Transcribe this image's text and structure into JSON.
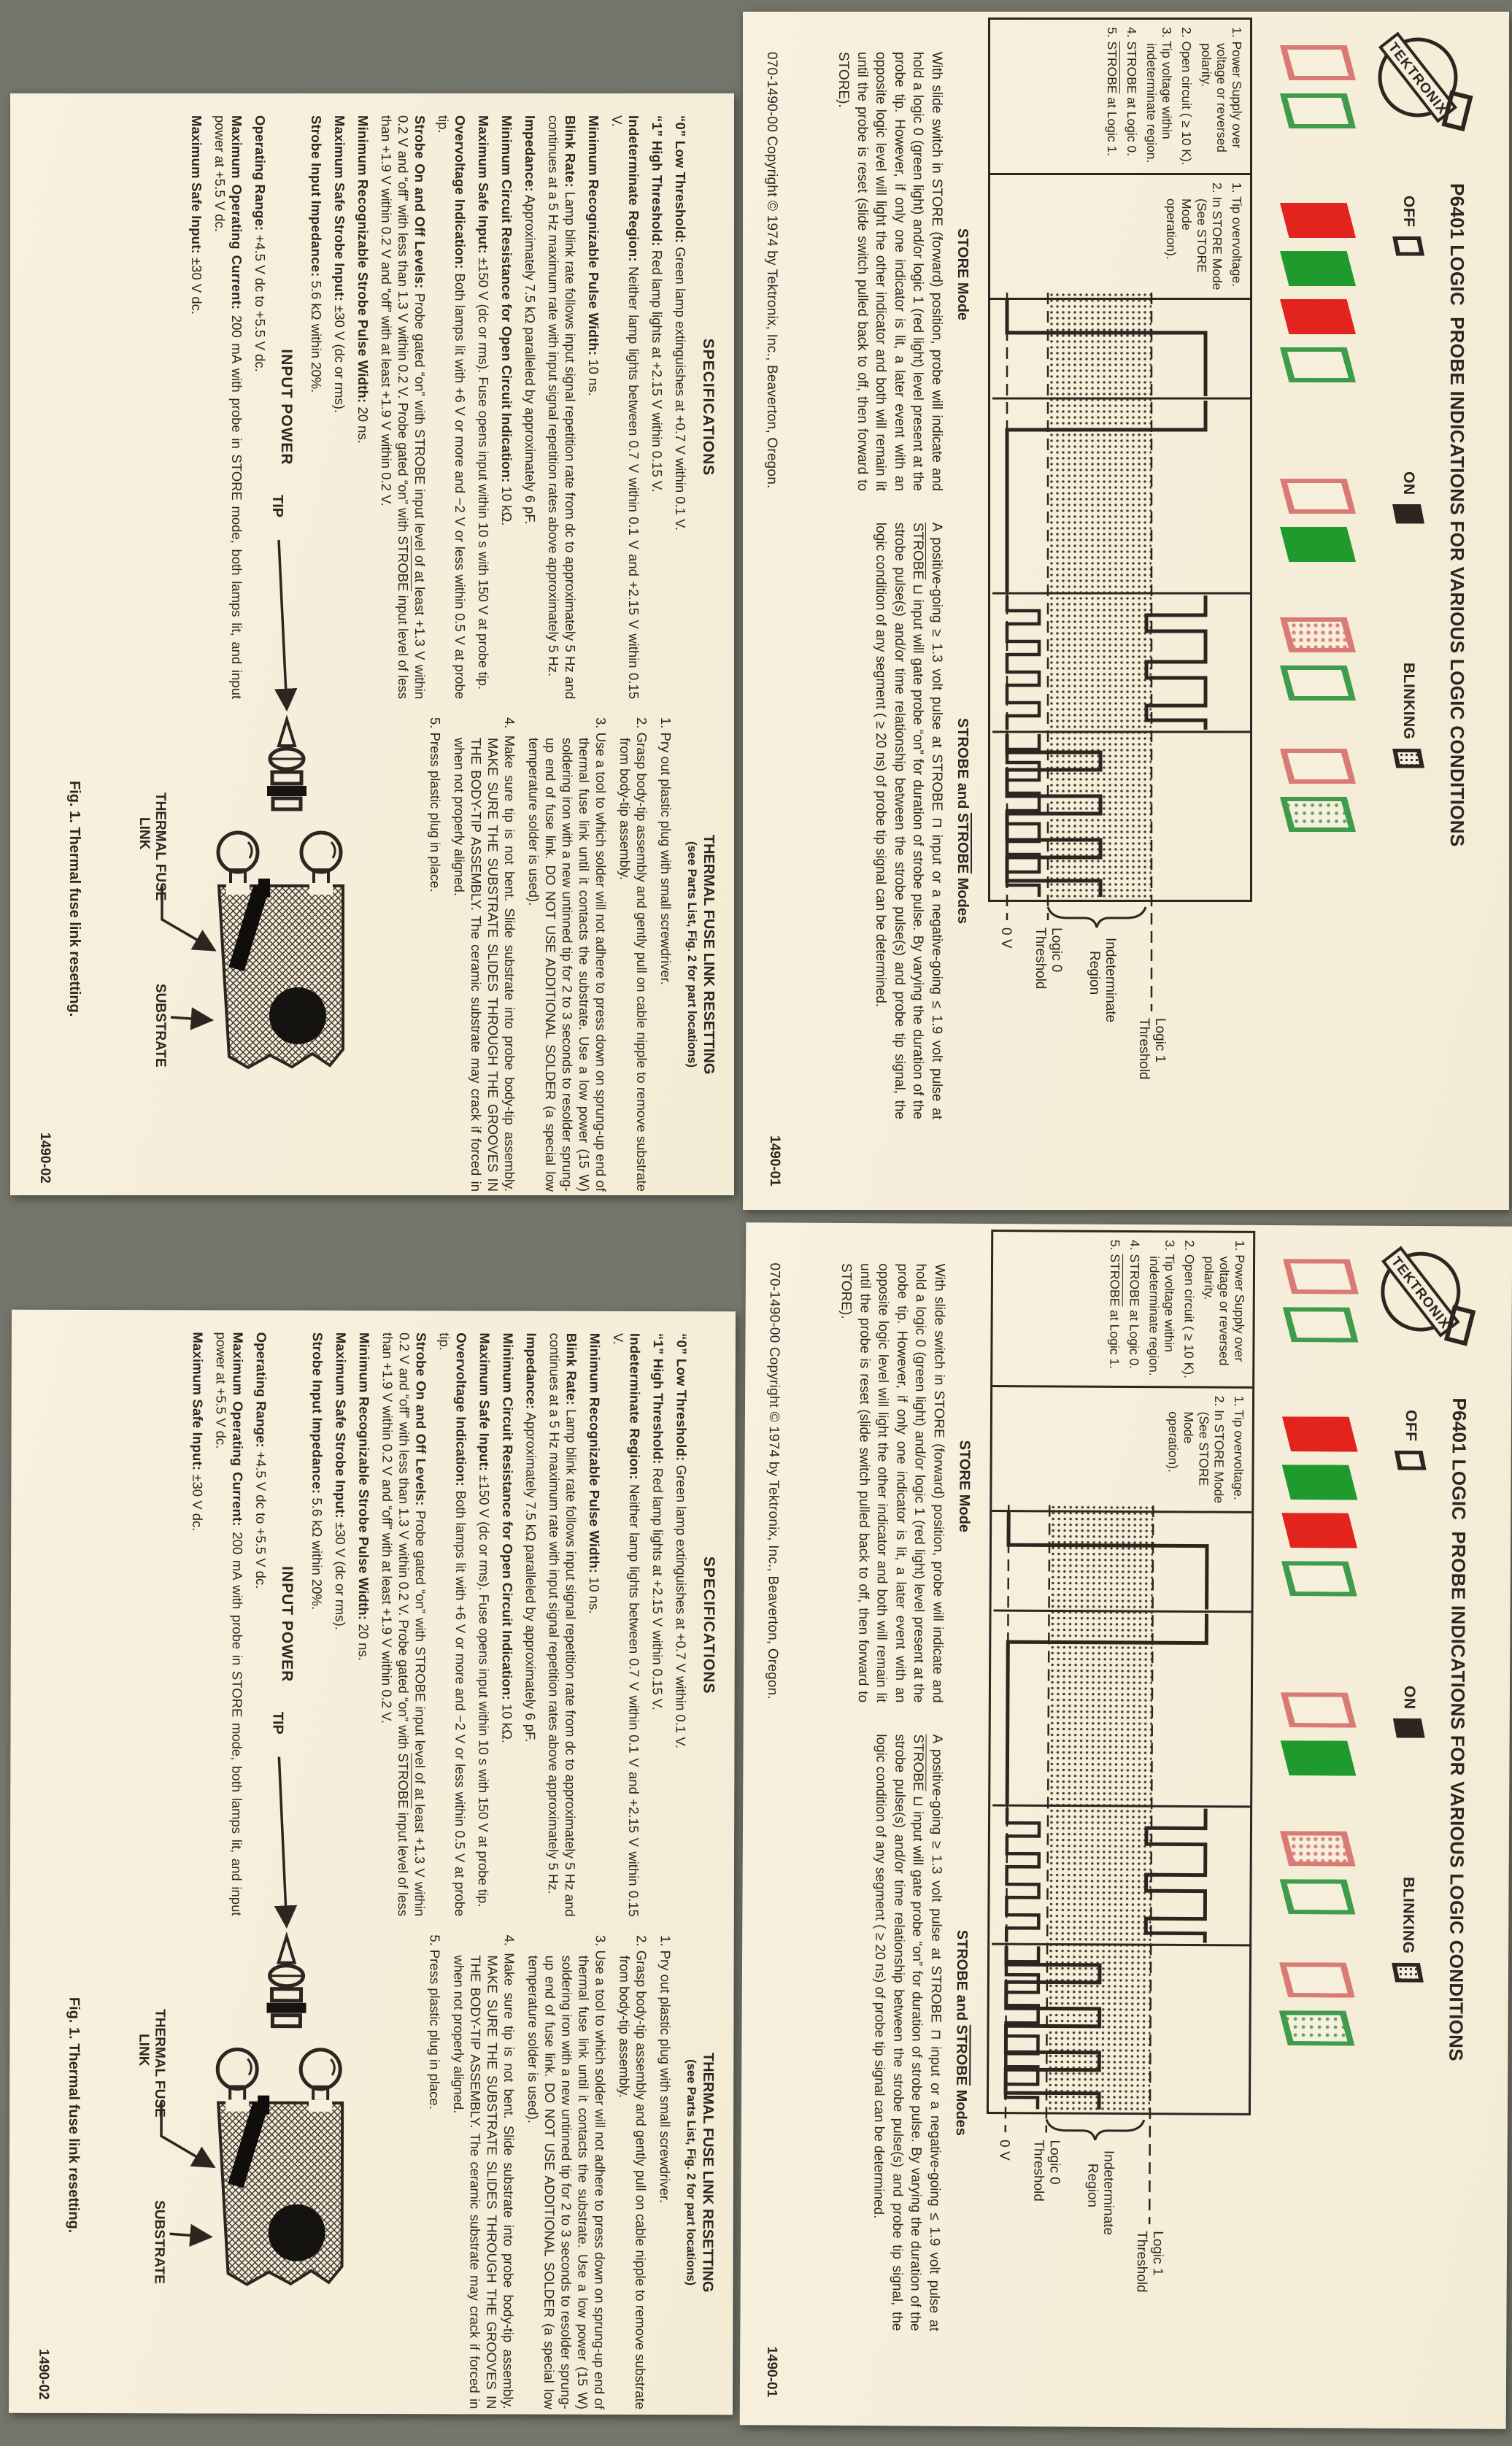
{
  "spec_card": {
    "title": "SPECIFICATIONS",
    "specs": [
      {
        "label": "“0” Low Threshold:",
        "text": "Green lamp extinguishes at +0.7 V within 0.1 V."
      },
      {
        "label": "“1” High Threshold:",
        "text": "Red lamp lights at +2.15 V within 0.15 V."
      },
      {
        "label": "Indeterminate Region:",
        "text": "Neither lamp lights between 0.7 V within 0.1 V and +2.15 V within 0.15 V."
      },
      {
        "label": "Minimum Recognizable Pulse Width:",
        "text": "10 ns."
      },
      {
        "label": "Blink Rate:",
        "text": "Lamp blink rate follows input signal repetition rate from dc to approximately 5 Hz and continues at a 5 Hz maximum rate with input signal repetition rates above approximately 5 Hz."
      },
      {
        "label": "Impedance:",
        "text": "Approximately 7.5 kΩ paralleled by approximately 6 pF."
      },
      {
        "label": "Minimum Circuit Resistance for Open Circuit Indication:",
        "text": "10 kΩ."
      },
      {
        "label": "Maximum Safe Input:",
        "text": "±150 V (dc or rms). Fuse opens input within 10 s with 150 V at probe tip."
      },
      {
        "label": "Overvoltage Indication:",
        "text": "Both lamps lit with +6 V or more and −2 V or less within 0.5 V at probe tip."
      },
      {
        "label": "Strobe On and Off Levels:",
        "text": "Probe gated “on” with STROBE input level of at least +1.3 V within 0.2 V and “off” with less than 1.3 V within 0.2 V. Probe gated “on” with {ov:STROBE} input level of less than +1.9 V within 0.2 V and “off” with at least +1.9 V within 0.2 V."
      },
      {
        "label": "Minimum Recognizable Strobe Pulse Width:",
        "text": "20 ns."
      },
      {
        "label": "Maximum Safe Strobe Input:",
        "text": "±30 V (dc or rms)."
      },
      {
        "label": "Strobe Input Impedance:",
        "text": "5.6 kΩ within 20%."
      }
    ],
    "input_power_title": "INPUT POWER",
    "input_power": [
      {
        "label": "Operating Range:",
        "text": "+4.5 V dc to +5.5 V dc."
      },
      {
        "label": "Maximum Operating Current:",
        "text": "200 mA with probe in STORE mode, both lamps lit, and input power at +5.5 V dc."
      },
      {
        "label": "Maximum Safe Input:",
        "text": "±30 V dc."
      }
    ],
    "thermal_title": "THERMAL FUSE LINK RESETTING",
    "thermal_subtitle": "(see Parts List, Fig. 2 for part locations)",
    "steps": [
      {
        "text": "1.  Pry out plastic plug with small screwdriver."
      },
      {
        "text": "2.  Grasp body-tip assembly and gently pull on cable nipple to remove substrate from body-tip assembly."
      },
      {
        "text": "3.  Use a tool to which solder will not adhere to press down on sprung-up end of thermal fuse link until it contacts the substrate. Use a low power (15 W) soldering iron with a new untinned tip for 2 to 3 seconds to resolder sprung-up end of fuse link. DO NOT USE ADDITIONAL SOLDER (a special low temperature solder is used)."
      },
      {
        "text": "4.  Make sure tip is not bent. Slide substrate into probe body-tip assembly. MAKE SURE THE SUBSTRATE SLIDES THROUGH THE GROOVES IN THE BODY-TIP ASSEMBLY. The ceramic substrate may crack if forced in when not properly aligned."
      },
      {
        "text": "5.  Press plastic plug in place."
      }
    ],
    "figure": {
      "tip_label": "TIP",
      "fuse_label_1": "THERMAL FUSE",
      "fuse_label_2": "LINK",
      "substrate_label": "SUBSTRATE",
      "caption": "Fig. 1.  Thermal fuse link resetting."
    },
    "part_number": "1490-02"
  },
  "ind_card": {
    "logo_text": "TEKTRONIX",
    "title": "P6401 LOGIC  PROBE INDICATIONS FOR VARIOUS LOGIC CONDITIONS",
    "legend": [
      {
        "label": "OFF",
        "style": "off"
      },
      {
        "label": "ON",
        "style": "on"
      },
      {
        "label": "BLINKING",
        "style": "blinking"
      }
    ],
    "columns": [
      {
        "red": "off",
        "green": "off"
      },
      {
        "red": "on",
        "green": "on"
      },
      {
        "red": "on",
        "green": "off"
      },
      {
        "red": "off",
        "green": "on"
      },
      {
        "red": "blinking",
        "green": "off"
      },
      {
        "red": "off",
        "green": "blinking"
      }
    ],
    "box_a_items": [
      "1.  Power Supply over voltage or reversed polarity.",
      "2.  Open circuit ( ≥ 10 K).",
      "3.  Tip voltage within indeterminate region.",
      "4.  STROBE at Logic 0.",
      "5.  {ov:STROBE} at Logic 1."
    ],
    "box_b_items": [
      "1.  Tip overvoltage.",
      "2.  In STORE Mode (See STORE Mode operation)."
    ],
    "diagram_labels": {
      "logic1_a": "Logic 1",
      "logic1_b": "Threshold",
      "indet_a": "Indeterminate",
      "indet_b": "Region",
      "logic0_a": "Logic 0",
      "logic0_b": "Threshold",
      "zero": "0 V"
    },
    "store_heading": "STORE Mode",
    "store_text": "With slide switch in STORE (forward) position, probe will indicate and hold a logic 0 (green light) and/or logic 1 (red light) level present at the probe tip. However, if only one indicator is lit, a later event with an opposite logic level will light the other indicator and both will remain lit until the probe is reset (slide switch pulled back to off, then forward to STORE).",
    "strobe_heading": "STROBE and {ov:STROBE} Modes",
    "strobe_text": "A positive-going ≥ 1.3 volt pulse at STROBE ⊓ input or a negative-going ≤ 1.9 volt pulse at {ov:STROBE} ⊔ input will gate probe “on” for duration of strobe pulse. By varying the duration of the strobe pulse(s) and/or time relationship between the strobe pulse(s) and probe tip signal, the logic condition of any segment ( ≥ 20 ns) of probe tip signal can be determined.",
    "copyright": "070-1490-00    Copyright © 1974 by Tektronix, Inc., Beaverton, Oregon.",
    "part_number": "1490-01"
  }
}
